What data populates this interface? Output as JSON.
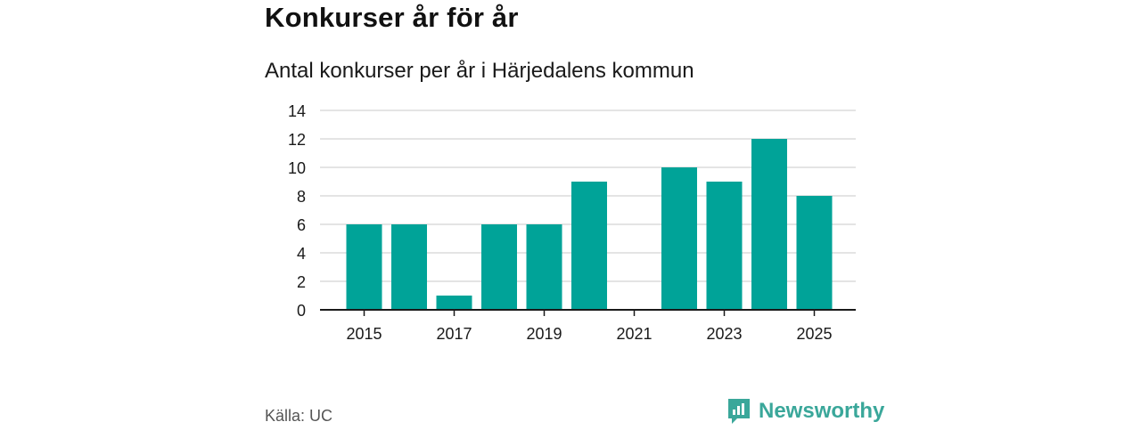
{
  "header": {
    "title": "Konkurser år för år",
    "subtitle": "Antal konkurser per år i Härjedalens kommun"
  },
  "footer": {
    "source": "Källa: UC",
    "brand": "Newsworthy"
  },
  "colors": {
    "bar": "#00a398",
    "grid": "#dcdcdc",
    "axis": "#1a1a1a",
    "brand": "#3aa79a"
  },
  "chart_data": {
    "type": "bar",
    "categories": [
      "2015",
      "2016",
      "2017",
      "2018",
      "2019",
      "2020",
      "2021",
      "2022",
      "2023",
      "2024",
      "2025"
    ],
    "values": [
      6,
      6,
      1,
      6,
      6,
      9,
      0,
      10,
      9,
      12,
      8
    ],
    "x_tick_labels": [
      "2015",
      "2017",
      "2019",
      "2021",
      "2023",
      "2025"
    ],
    "y_ticks": [
      0,
      2,
      4,
      6,
      8,
      10,
      12,
      14
    ],
    "ylim": [
      0,
      14
    ],
    "grid": true,
    "legend": "none",
    "xlabel": "",
    "ylabel": ""
  }
}
